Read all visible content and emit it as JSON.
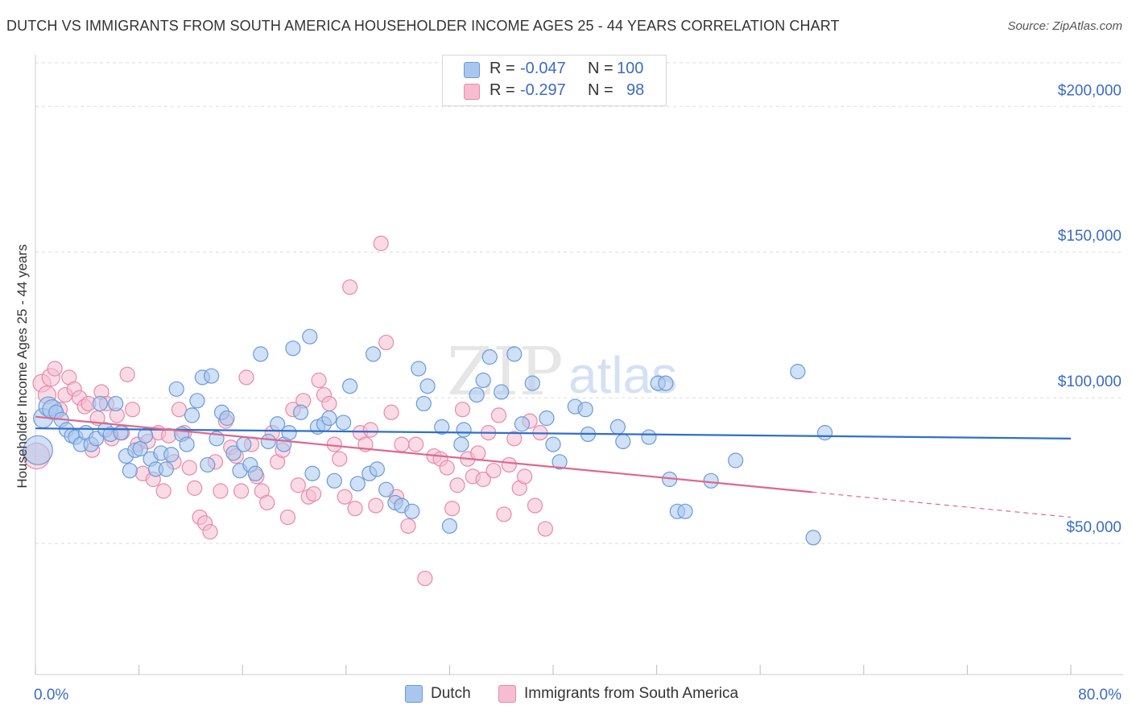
{
  "title": "DUTCH VS IMMIGRANTS FROM SOUTH AMERICA HOUSEHOLDER INCOME AGES 25 - 44 YEARS CORRELATION CHART",
  "source": "Source: ZipAtlas.com",
  "legend": {
    "rows": [
      {
        "r_label": "R =",
        "r_value": "-0.047",
        "n_label": "N =",
        "n_value": "100"
      },
      {
        "r_label": "R =",
        "r_value": "-0.297",
        "n_label": "N =",
        "n_value": "98"
      }
    ]
  },
  "bottom_legend": [
    "Dutch",
    "Immigrants from South America"
  ],
  "colors": {
    "dutch_fill": "#a9c6ee",
    "dutch_stroke": "#6b9ad8",
    "dutch_line": "#2f6fca",
    "sa_fill": "#f6bdd0",
    "sa_stroke": "#e889a8",
    "sa_line": "#e0668f",
    "axis_value": "#3a6cc4",
    "grid": "#dddddd"
  },
  "chart_data": {
    "type": "scatter",
    "title": "DUTCH VS IMMIGRANTS FROM SOUTH AMERICA HOUSEHOLDER INCOME AGES 25 - 44 YEARS CORRELATION CHART",
    "xlabel": "",
    "ylabel": "Householder Income Ages 25 - 44 years",
    "xlim": [
      0,
      80
    ],
    "ylim": [
      5000,
      215000
    ],
    "x_tick_labels": [
      "0.0%",
      "80.0%"
    ],
    "y_ticks": [
      50000,
      100000,
      150000,
      200000
    ],
    "y_tick_labels": [
      "$50,000",
      "$100,000",
      "$150,000",
      "$200,000"
    ],
    "grid": true,
    "legend_position": "top-center",
    "series": [
      {
        "name": "Dutch",
        "r": -0.047,
        "n": 100,
        "trend": {
          "x": [
            0,
            80
          ],
          "y": [
            89500,
            86000
          ]
        },
        "points": [
          [
            0.2,
            82000
          ],
          [
            0.6,
            93000
          ],
          [
            1.0,
            97000
          ],
          [
            1.3,
            96000
          ],
          [
            1.6,
            95000
          ],
          [
            2.0,
            92500
          ],
          [
            2.4,
            89000
          ],
          [
            2.8,
            87000
          ],
          [
            3.1,
            86500
          ],
          [
            3.5,
            84000
          ],
          [
            3.9,
            88000
          ],
          [
            4.3,
            84000
          ],
          [
            4.7,
            86000
          ],
          [
            5.0,
            98000
          ],
          [
            5.4,
            89000
          ],
          [
            5.8,
            87500
          ],
          [
            6.2,
            98000
          ],
          [
            6.6,
            88000
          ],
          [
            7.0,
            80000
          ],
          [
            7.3,
            75000
          ],
          [
            7.7,
            82000
          ],
          [
            8.1,
            82500
          ],
          [
            8.5,
            87000
          ],
          [
            8.9,
            79000
          ],
          [
            9.3,
            75500
          ],
          [
            9.7,
            81000
          ],
          [
            10.1,
            75500
          ],
          [
            10.5,
            80500
          ],
          [
            10.9,
            103000
          ],
          [
            11.3,
            87500
          ],
          [
            11.7,
            84000
          ],
          [
            12.1,
            94000
          ],
          [
            12.5,
            99000
          ],
          [
            12.9,
            107000
          ],
          [
            13.3,
            77000
          ],
          [
            13.6,
            107500
          ],
          [
            14.0,
            86000
          ],
          [
            14.4,
            95000
          ],
          [
            14.8,
            93000
          ],
          [
            15.3,
            81000
          ],
          [
            15.8,
            75000
          ],
          [
            16.1,
            84000
          ],
          [
            16.6,
            77000
          ],
          [
            17.0,
            74000
          ],
          [
            17.4,
            115000
          ],
          [
            18.0,
            85000
          ],
          [
            18.7,
            91000
          ],
          [
            19.2,
            84000
          ],
          [
            19.6,
            88000
          ],
          [
            19.9,
            117000
          ],
          [
            20.5,
            95000
          ],
          [
            21.2,
            121000
          ],
          [
            21.4,
            74000
          ],
          [
            21.8,
            90000
          ],
          [
            22.3,
            91000
          ],
          [
            22.7,
            93000
          ],
          [
            23.1,
            71500
          ],
          [
            23.8,
            91500
          ],
          [
            24.3,
            104000
          ],
          [
            24.9,
            70500
          ],
          [
            25.8,
            74000
          ],
          [
            26.1,
            115000
          ],
          [
            26.4,
            75500
          ],
          [
            27.1,
            68500
          ],
          [
            27.8,
            64000
          ],
          [
            28.3,
            63000
          ],
          [
            29.1,
            61000
          ],
          [
            29.6,
            110000
          ],
          [
            30.0,
            98000
          ],
          [
            30.3,
            104000
          ],
          [
            31.4,
            90000
          ],
          [
            32.0,
            56000
          ],
          [
            32.9,
            84000
          ],
          [
            33.1,
            89000
          ],
          [
            34.1,
            101000
          ],
          [
            34.6,
            106000
          ],
          [
            35.1,
            114000
          ],
          [
            36.0,
            102000
          ],
          [
            37.0,
            115000
          ],
          [
            37.6,
            91000
          ],
          [
            38.4,
            105000
          ],
          [
            39.5,
            93000
          ],
          [
            40.0,
            84000
          ],
          [
            40.5,
            78000
          ],
          [
            41.7,
            97000
          ],
          [
            42.5,
            96000
          ],
          [
            42.7,
            87500
          ],
          [
            45.0,
            90000
          ],
          [
            45.4,
            85000
          ],
          [
            47.4,
            86500
          ],
          [
            48.1,
            105000
          ],
          [
            48.7,
            105000
          ],
          [
            49.0,
            72000
          ],
          [
            49.6,
            61000
          ],
          [
            50.2,
            61000
          ],
          [
            52.2,
            71500
          ],
          [
            54.1,
            78500
          ],
          [
            58.9,
            109000
          ],
          [
            60.1,
            52000
          ],
          [
            61.0,
            88000
          ]
        ]
      },
      {
        "name": "Immigrants from South America",
        "r": -0.297,
        "n": 98,
        "trend": {
          "x": [
            0,
            80
          ],
          "y": [
            93500,
            59000
          ]
        },
        "points": [
          [
            0.1,
            80000
          ],
          [
            0.5,
            105000
          ],
          [
            0.9,
            101000
          ],
          [
            1.2,
            107000
          ],
          [
            1.5,
            110000
          ],
          [
            1.9,
            96000
          ],
          [
            2.3,
            101000
          ],
          [
            2.6,
            107000
          ],
          [
            3.0,
            103000
          ],
          [
            3.4,
            100000
          ],
          [
            3.8,
            97000
          ],
          [
            4.1,
            98000
          ],
          [
            4.4,
            82000
          ],
          [
            4.8,
            93000
          ],
          [
            5.1,
            102000
          ],
          [
            5.5,
            98000
          ],
          [
            5.9,
            86000
          ],
          [
            6.3,
            94000
          ],
          [
            6.7,
            88000
          ],
          [
            7.1,
            108000
          ],
          [
            7.5,
            96000
          ],
          [
            7.9,
            84000
          ],
          [
            8.3,
            74000
          ],
          [
            8.7,
            85000
          ],
          [
            9.1,
            72000
          ],
          [
            9.5,
            88000
          ],
          [
            9.9,
            68000
          ],
          [
            10.3,
            87000
          ],
          [
            10.7,
            78000
          ],
          [
            11.1,
            96000
          ],
          [
            11.5,
            88000
          ],
          [
            11.9,
            76000
          ],
          [
            12.3,
            69000
          ],
          [
            12.7,
            59000
          ],
          [
            13.1,
            57000
          ],
          [
            13.5,
            54000
          ],
          [
            13.9,
            78000
          ],
          [
            14.3,
            68000
          ],
          [
            14.7,
            92000
          ],
          [
            15.1,
            83000
          ],
          [
            15.5,
            80000
          ],
          [
            15.9,
            68000
          ],
          [
            16.3,
            107000
          ],
          [
            16.7,
            84000
          ],
          [
            17.1,
            73000
          ],
          [
            17.5,
            68000
          ],
          [
            17.9,
            64000
          ],
          [
            18.3,
            88000
          ],
          [
            18.7,
            78000
          ],
          [
            19.1,
            82000
          ],
          [
            19.5,
            59000
          ],
          [
            19.9,
            96000
          ],
          [
            20.3,
            70000
          ],
          [
            20.7,
            99000
          ],
          [
            21.1,
            66000
          ],
          [
            21.5,
            67000
          ],
          [
            21.9,
            106000
          ],
          [
            22.3,
            101000
          ],
          [
            22.7,
            98000
          ],
          [
            23.1,
            84000
          ],
          [
            23.5,
            79000
          ],
          [
            23.9,
            66000
          ],
          [
            24.3,
            138000
          ],
          [
            24.7,
            62000
          ],
          [
            25.1,
            88000
          ],
          [
            25.5,
            84000
          ],
          [
            25.9,
            89000
          ],
          [
            26.3,
            63000
          ],
          [
            26.7,
            153000
          ],
          [
            27.1,
            119000
          ],
          [
            27.5,
            95000
          ],
          [
            27.9,
            66000
          ],
          [
            28.3,
            84000
          ],
          [
            28.8,
            56000
          ],
          [
            29.4,
            84000
          ],
          [
            30.1,
            38000
          ],
          [
            30.8,
            80000
          ],
          [
            31.3,
            79000
          ],
          [
            31.8,
            76000
          ],
          [
            32.2,
            62000
          ],
          [
            32.6,
            70000
          ],
          [
            33.0,
            96000
          ],
          [
            33.4,
            79000
          ],
          [
            33.8,
            73000
          ],
          [
            34.2,
            81000
          ],
          [
            34.6,
            72000
          ],
          [
            35.0,
            88000
          ],
          [
            35.4,
            75000
          ],
          [
            35.8,
            94000
          ],
          [
            36.2,
            60000
          ],
          [
            36.6,
            77000
          ],
          [
            37.0,
            86000
          ],
          [
            37.4,
            69000
          ],
          [
            37.8,
            73000
          ],
          [
            38.2,
            92000
          ],
          [
            38.6,
            63000
          ],
          [
            39.0,
            88000
          ],
          [
            39.4,
            55000
          ]
        ]
      }
    ]
  }
}
